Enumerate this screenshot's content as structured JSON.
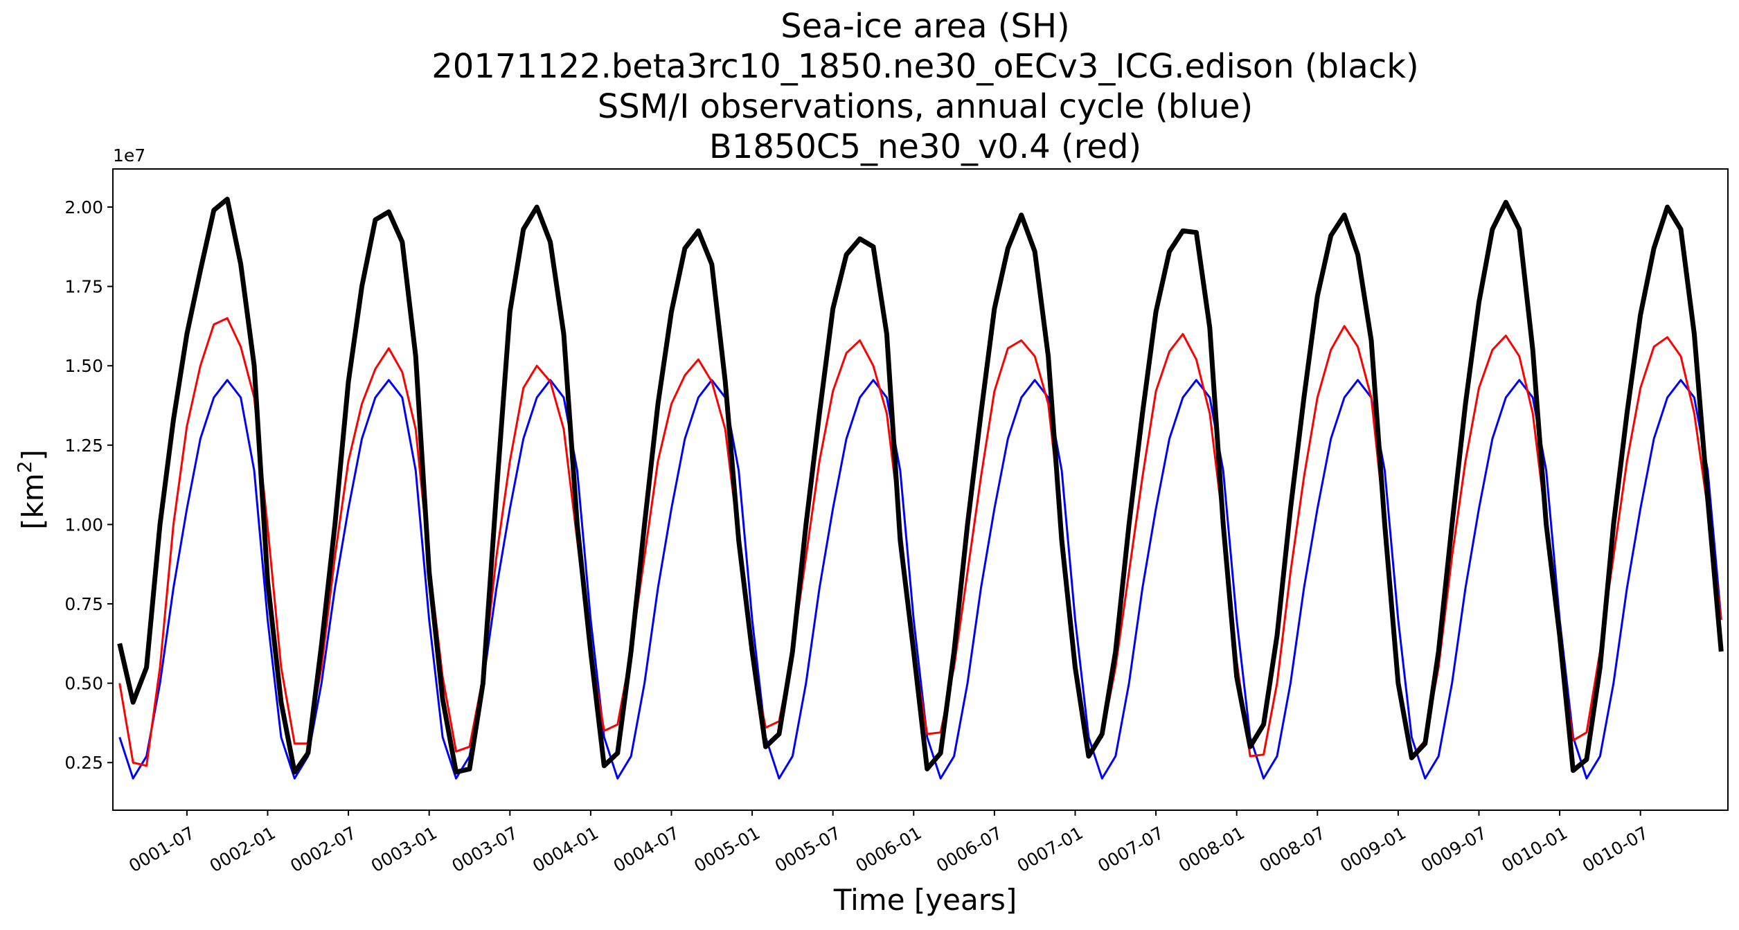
{
  "chart_data": {
    "type": "line",
    "title": [
      "Sea-ice area (SH)",
      "20171122.beta3rc10_1850.ne30_oECv3_ICG.edison (black)",
      "SSM/I observations, annual cycle (blue)",
      "B1850C5_ne30_v0.4 (red)"
    ],
    "xlabel": "Time [years]",
    "ylabel": "[km",
    "ylabel_sup": "2",
    "ylabel_close": "]",
    "y_offset_label": "1e7",
    "y_multiplier": 10000000,
    "ylim": [
      0.1,
      2.12
    ],
    "yticks": [
      0.25,
      0.5,
      0.75,
      1.0,
      1.25,
      1.5,
      1.75,
      2.0
    ],
    "ytick_labels": [
      "0.25",
      "0.50",
      "0.75",
      "1.00",
      "1.25",
      "1.50",
      "1.75",
      "2.00"
    ],
    "x_unit": "months since 0001-01",
    "xlim": [
      0.5,
      120.5
    ],
    "xticks": [
      6,
      12,
      18,
      24,
      30,
      36,
      42,
      48,
      54,
      60,
      66,
      72,
      78,
      84,
      90,
      96,
      102,
      108,
      114
    ],
    "xtick_labels": [
      "0001-07",
      "0002-01",
      "0002-07",
      "0003-01",
      "0003-07",
      "0004-01",
      "0004-07",
      "0005-01",
      "0005-07",
      "0006-01",
      "0006-07",
      "0007-01",
      "0007-07",
      "0008-01",
      "0008-07",
      "0009-01",
      "0009-07",
      "0010-01",
      "0010-07"
    ],
    "grid": false,
    "legend": "none",
    "series": [
      {
        "color": "#0000ff",
        "linewidth": 3,
        "cycle": [
          0.33,
          0.2,
          0.27,
          0.5,
          0.8,
          1.05,
          1.27,
          1.4,
          1.455,
          1.4,
          1.17,
          0.7
        ],
        "years": 10
      },
      {
        "color": "#ff0000",
        "linewidth": 3,
        "annual": [
          [
            0.5,
            0.25,
            0.24,
            0.55,
            1.0,
            1.31,
            1.5,
            1.63,
            1.65,
            1.56,
            1.4,
            0.99
          ],
          [
            0.55,
            0.31,
            0.31,
            0.55,
            0.9,
            1.2,
            1.38,
            1.49,
            1.555,
            1.48,
            1.3,
            0.88
          ],
          [
            0.52,
            0.285,
            0.3,
            0.52,
            0.9,
            1.2,
            1.43,
            1.5,
            1.45,
            1.3,
            0.95,
            0.6
          ],
          [
            0.35,
            0.37,
            0.6,
            0.9,
            1.2,
            1.38,
            1.47,
            1.52,
            1.45,
            1.3,
            0.95,
            0.58
          ],
          [
            0.36,
            0.38,
            0.6,
            0.9,
            1.2,
            1.42,
            1.54,
            1.58,
            1.5,
            1.35,
            1.0,
            0.6
          ],
          [
            0.34,
            0.345,
            0.55,
            0.85,
            1.15,
            1.42,
            1.555,
            1.58,
            1.53,
            1.38,
            1.0,
            0.55
          ],
          [
            0.28,
            0.33,
            0.55,
            0.85,
            1.15,
            1.42,
            1.545,
            1.6,
            1.52,
            1.35,
            1.0,
            0.57
          ],
          [
            0.27,
            0.275,
            0.5,
            0.85,
            1.15,
            1.4,
            1.55,
            1.625,
            1.56,
            1.4,
            1.0,
            0.5
          ],
          [
            0.27,
            0.32,
            0.55,
            0.9,
            1.2,
            1.43,
            1.55,
            1.595,
            1.53,
            1.35,
            1.0,
            0.62
          ],
          [
            0.32,
            0.345,
            0.6,
            0.9,
            1.2,
            1.43,
            1.56,
            1.59,
            1.53,
            1.35,
            1.05,
            0.7
          ]
        ]
      },
      {
        "color": "#000000",
        "linewidth": 7,
        "annual": [
          [
            0.625,
            0.44,
            0.55,
            1.0,
            1.33,
            1.6,
            1.8,
            1.99,
            2.025,
            1.82,
            1.5,
            0.82
          ],
          [
            0.44,
            0.22,
            0.28,
            0.62,
            1.0,
            1.45,
            1.75,
            1.96,
            1.985,
            1.89,
            1.53,
            0.85
          ],
          [
            0.45,
            0.22,
            0.23,
            0.5,
            1.1,
            1.67,
            1.93,
            2.0,
            1.89,
            1.6,
            1.0,
            0.6
          ],
          [
            0.24,
            0.28,
            0.6,
            1.0,
            1.38,
            1.67,
            1.87,
            1.925,
            1.82,
            1.45,
            0.95,
            0.6
          ],
          [
            0.3,
            0.34,
            0.6,
            1.0,
            1.35,
            1.68,
            1.85,
            1.9,
            1.875,
            1.6,
            0.95,
            0.6
          ],
          [
            0.23,
            0.28,
            0.6,
            1.0,
            1.35,
            1.68,
            1.87,
            1.975,
            1.86,
            1.53,
            0.95,
            0.55
          ],
          [
            0.27,
            0.34,
            0.6,
            1.0,
            1.35,
            1.67,
            1.86,
            1.925,
            1.92,
            1.62,
            1.0,
            0.52
          ],
          [
            0.3,
            0.37,
            0.65,
            1.05,
            1.4,
            1.72,
            1.91,
            1.975,
            1.85,
            1.58,
            1.0,
            0.5
          ],
          [
            0.265,
            0.31,
            0.6,
            1.0,
            1.38,
            1.7,
            1.93,
            2.015,
            1.93,
            1.55,
            1.0,
            0.65
          ],
          [
            0.225,
            0.26,
            0.55,
            1.0,
            1.35,
            1.66,
            1.87,
            2.0,
            1.93,
            1.6,
            1.08,
            0.6
          ]
        ]
      }
    ]
  }
}
